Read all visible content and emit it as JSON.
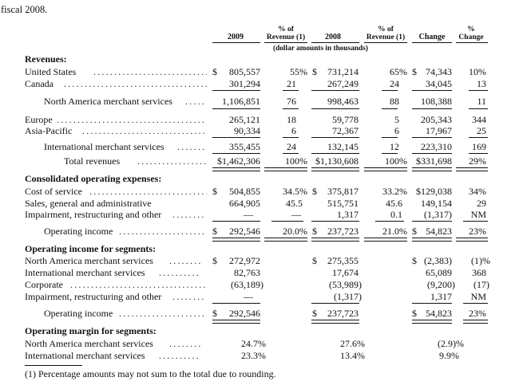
{
  "intro_line": "fiscal 2008.",
  "headers": {
    "y2009": "2009",
    "pct_rev_2009": [
      "% of",
      "Revenue (1)"
    ],
    "y2008": "2008",
    "pct_rev_2008": [
      "% of",
      "Revenue (1)"
    ],
    "change": "Change",
    "pct_change": [
      "%",
      "Change"
    ],
    "units": "(dollar amounts in thousands)"
  },
  "sections": {
    "revenues": "Revenues:",
    "opex": "Consolidated operating expenses:",
    "seg_income": "Operating income for segments:",
    "seg_margin": "Operating margin for segments:"
  },
  "rows": {
    "us": {
      "label": "United States",
      "v2009": "805,557",
      "p2009": "55%",
      "v2008": "731,214",
      "p2008": "65%",
      "chg": "74,343",
      "pchg": "10%"
    },
    "canada": {
      "label": "Canada",
      "v2009": "301,294",
      "p2009": "21",
      "v2008": "267,249",
      "p2008": "24",
      "chg": "34,045",
      "pchg": "13"
    },
    "na": {
      "label": "North America merchant services",
      "v2009": "1,106,851",
      "p2009": "76",
      "v2008": "998,463",
      "p2008": "88",
      "chg": "108,388",
      "pchg": "11"
    },
    "europe": {
      "label": "Europe",
      "v2009": "265,121",
      "p2009": "18",
      "v2008": "59,778",
      "p2008": "5",
      "chg": "205,343",
      "pchg": "344"
    },
    "apac": {
      "label": "Asia-Pacific",
      "v2009": "90,334",
      "p2009": "6",
      "v2008": "72,367",
      "p2008": "6",
      "chg": "17,967",
      "pchg": "25"
    },
    "intl": {
      "label": "International merchant services",
      "v2009": "355,455",
      "p2009": "24",
      "v2008": "132,145",
      "p2008": "12",
      "chg": "223,310",
      "pchg": "169"
    },
    "total": {
      "label": "Total revenues",
      "v2009": "$1,462,306",
      "p2009": "100%",
      "v2008": "$1,130,608",
      "p2008": "100%",
      "chg": "$331,698",
      "pchg": "29%"
    },
    "cos": {
      "label": "Cost of service",
      "v2009": "504,855",
      "p2009": "34.5%",
      "v2008": "375,817",
      "p2008": "33.2%",
      "chg": "$129,038",
      "pchg": "34%"
    },
    "sga": {
      "label": "Sales, general and administrative",
      "v2009": "664,905",
      "p2009": "45.5",
      "v2008": "515,751",
      "p2008": "45.6",
      "chg": "149,154",
      "pchg": "29"
    },
    "impair": {
      "label": "Impairment, restructuring and other",
      "v2009": "—",
      "p2009": "—",
      "v2008": "1,317",
      "p2008": "0.1",
      "chg": "(1,317)",
      "pchg": "NM"
    },
    "opinc": {
      "label": "Operating income",
      "v2009": "292,546",
      "p2009": "20.0%",
      "v2008": "237,723",
      "p2008": "21.0%",
      "chg": "54,823",
      "pchg": "23%"
    },
    "seg_na": {
      "label": "North America merchant services",
      "v2009": "272,972",
      "v2008": "275,355",
      "chg": "(2,383)",
      "pchg": "(1)%"
    },
    "seg_intl": {
      "label": "International merchant services",
      "v2009": "82,763",
      "v2008": "17,674",
      "chg": "65,089",
      "pchg": "368"
    },
    "seg_corp": {
      "label": "Corporate",
      "v2009": "(63,189)",
      "v2008": "(53,989)",
      "chg": "(9,200)",
      "pchg": "(17)"
    },
    "seg_impair": {
      "label": "Impairment, restructuring and other",
      "v2009": "—",
      "v2008": "(1,317)",
      "chg": "1,317",
      "pchg": "NM"
    },
    "seg_opinc": {
      "label": "Operating income",
      "v2009": "292,546",
      "v2008": "237,723",
      "chg": "54,823",
      "pchg": "23%"
    },
    "mar_na": {
      "label": "North America merchant services",
      "v2009": "24.7%",
      "v2008": "27.6%",
      "chg": "(2.9)%"
    },
    "mar_intl": {
      "label": "International merchant services",
      "v2009": "23.3%",
      "v2008": "13.4%",
      "chg": "9.9%"
    }
  },
  "currency_symbol": "$",
  "footnote": "(1)   Percentage amounts may not sum to the total due to rounding."
}
